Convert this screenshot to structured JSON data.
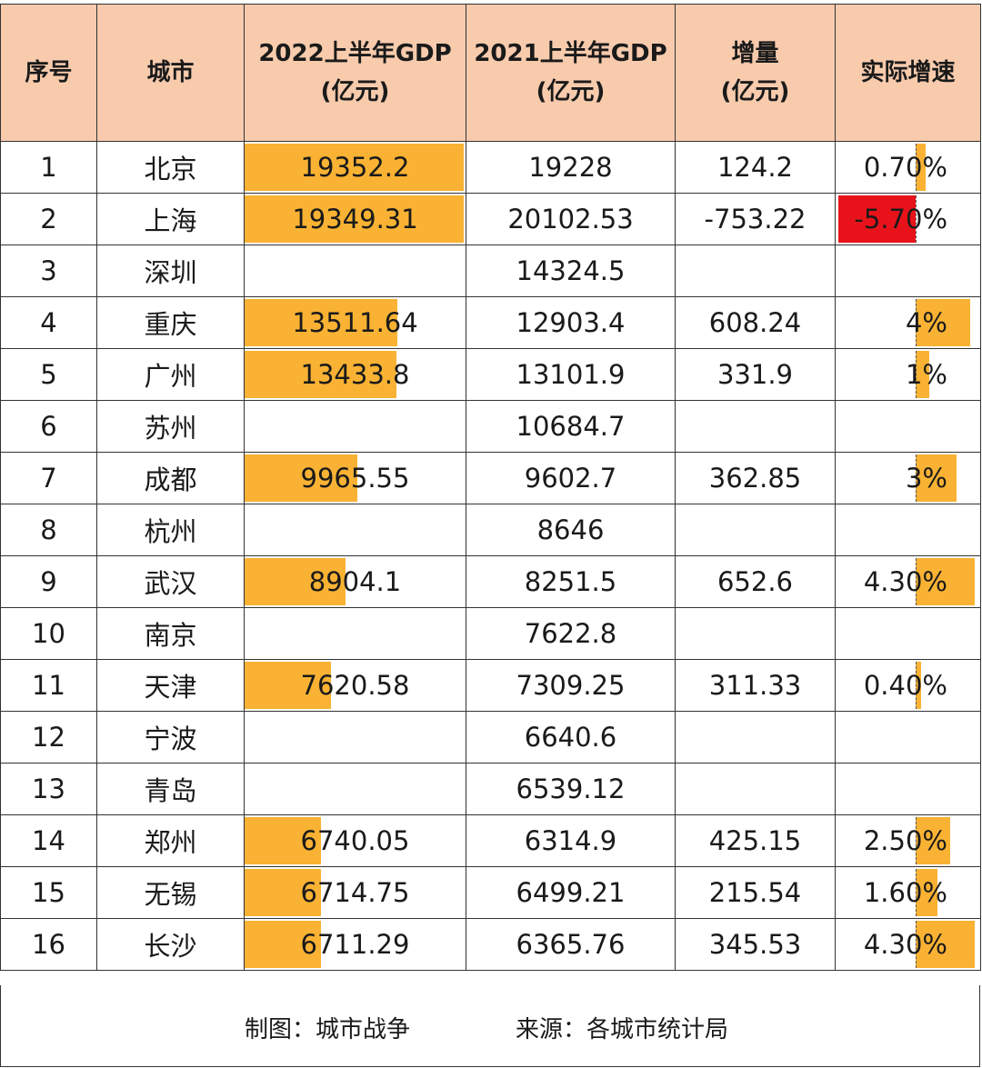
{
  "table": {
    "headers": [
      [
        "序号"
      ],
      [
        "城市"
      ],
      [
        "2022上半年GDP",
        "(亿元)"
      ],
      [
        "2021上半年GDP",
        "(亿元)"
      ],
      [
        "增量",
        "(亿元)"
      ],
      [
        "实际增速"
      ]
    ],
    "rows": [
      {
        "rank": "1",
        "city": "北京",
        "gdp2022": "19352.2",
        "gdp2022_value": 19352.2,
        "gdp2021": "19228",
        "increase": "124.2",
        "growth": "0.70%",
        "growth_value": 0.7
      },
      {
        "rank": "2",
        "city": "上海",
        "gdp2022": "19349.31",
        "gdp2022_value": 19349.31,
        "gdp2021": "20102.53",
        "increase": "-753.22",
        "growth": "-5.70%",
        "growth_value": -5.7
      },
      {
        "rank": "3",
        "city": "深圳",
        "gdp2022": "",
        "gdp2022_value": null,
        "gdp2021": "14324.5",
        "increase": "",
        "growth": "",
        "growth_value": null
      },
      {
        "rank": "4",
        "city": "重庆",
        "gdp2022": "13511.64",
        "gdp2022_value": 13511.64,
        "gdp2021": "12903.4",
        "increase": "608.24",
        "growth": "4%",
        "growth_value": 4
      },
      {
        "rank": "5",
        "city": "广州",
        "gdp2022": "13433.8",
        "gdp2022_value": 13433.8,
        "gdp2021": "13101.9",
        "increase": "331.9",
        "growth": "1%",
        "growth_value": 1
      },
      {
        "rank": "6",
        "city": "苏州",
        "gdp2022": "",
        "gdp2022_value": null,
        "gdp2021": "10684.7",
        "increase": "",
        "growth": "",
        "growth_value": null
      },
      {
        "rank": "7",
        "city": "成都",
        "gdp2022": "9965.55",
        "gdp2022_value": 9965.55,
        "gdp2021": "9602.7",
        "increase": "362.85",
        "growth": "3%",
        "growth_value": 3
      },
      {
        "rank": "8",
        "city": "杭州",
        "gdp2022": "",
        "gdp2022_value": null,
        "gdp2021": "8646",
        "increase": "",
        "growth": "",
        "growth_value": null
      },
      {
        "rank": "9",
        "city": "武汉",
        "gdp2022": "8904.1",
        "gdp2022_value": 8904.1,
        "gdp2021": "8251.5",
        "increase": "652.6",
        "growth": "4.30%",
        "growth_value": 4.3
      },
      {
        "rank": "10",
        "city": "南京",
        "gdp2022": "",
        "gdp2022_value": null,
        "gdp2021": "7622.8",
        "increase": "",
        "growth": "",
        "growth_value": null
      },
      {
        "rank": "11",
        "city": "天津",
        "gdp2022": "7620.58",
        "gdp2022_value": 7620.58,
        "gdp2021": "7309.25",
        "increase": "311.33",
        "growth": "0.40%",
        "growth_value": 0.4
      },
      {
        "rank": "12",
        "city": "宁波",
        "gdp2022": "",
        "gdp2022_value": null,
        "gdp2021": "6640.6",
        "increase": "",
        "growth": "",
        "growth_value": null
      },
      {
        "rank": "13",
        "city": "青岛",
        "gdp2022": "",
        "gdp2022_value": null,
        "gdp2021": "6539.12",
        "increase": "",
        "growth": "",
        "growth_value": null
      },
      {
        "rank": "14",
        "city": "郑州",
        "gdp2022": "6740.05",
        "gdp2022_value": 6740.05,
        "gdp2021": "6314.9",
        "increase": "425.15",
        "growth": "2.50%",
        "growth_value": 2.5
      },
      {
        "rank": "15",
        "city": "无锡",
        "gdp2022": "6714.75",
        "gdp2022_value": 6714.75,
        "gdp2021": "6499.21",
        "increase": "215.54",
        "growth": "1.60%",
        "growth_value": 1.6
      },
      {
        "rank": "16",
        "city": "长沙",
        "gdp2022": "6711.29",
        "gdp2022_value": 6711.29,
        "gdp2021": "6365.76",
        "increase": "345.53",
        "growth": "4.30%",
        "growth_value": 4.3
      }
    ]
  },
  "footer": {
    "credit": "制图：城市战争",
    "source": "来源：各城市统计局"
  },
  "colors": {
    "header_bg": "#f8cbad",
    "bar_positive": "#f9b233",
    "bar_negative": "#e8131a",
    "grid_line": "#333333"
  }
}
